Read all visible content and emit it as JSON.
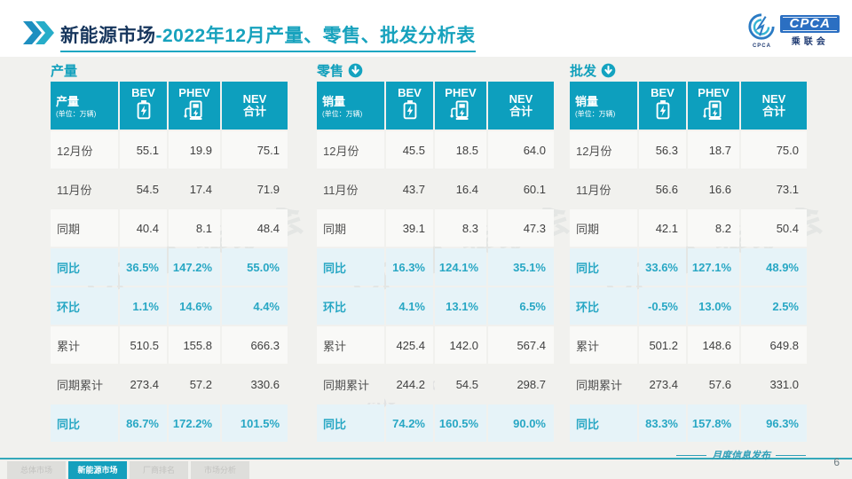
{
  "title": {
    "prefix": "新能源市场",
    "suffix": "-2022年12月产量、零售、批发分析表"
  },
  "logo": {
    "cpca": "CPCA",
    "sub": "乘联会",
    "cada": "CPCA"
  },
  "watermark": {
    "logo_text": "CPCA 乘联会",
    "url_text": "www.cpcaauto.com"
  },
  "chart_data": [
    {
      "type": "table",
      "section": "产量",
      "arrow": false,
      "header": {
        "label": "产量",
        "unit": "(单位：万辆)",
        "col_bev": "BEV",
        "col_phev": "PHEV",
        "col_nev_1": "NEV",
        "col_nev_2": "合计"
      },
      "rows": [
        {
          "label": "12月份",
          "values": [
            "55.1",
            "19.9",
            "75.1"
          ],
          "type": "a"
        },
        {
          "label": "11月份",
          "values": [
            "54.5",
            "17.4",
            "71.9"
          ],
          "type": "b"
        },
        {
          "label": "同期",
          "values": [
            "40.4",
            "8.1",
            "48.4"
          ],
          "type": "a"
        },
        {
          "label": "同比",
          "values": [
            "36.5%",
            "147.2%",
            "55.0%"
          ],
          "type": "h"
        },
        {
          "label": "环比",
          "values": [
            "1.1%",
            "14.6%",
            "4.4%"
          ],
          "type": "h"
        },
        {
          "label": "累计",
          "values": [
            "510.5",
            "155.8",
            "666.3"
          ],
          "type": "a"
        },
        {
          "label": "同期累计",
          "values": [
            "273.4",
            "57.2",
            "330.6"
          ],
          "type": "b"
        },
        {
          "label": "同比",
          "values": [
            "86.7%",
            "172.2%",
            "101.5%"
          ],
          "type": "h"
        }
      ]
    },
    {
      "type": "table",
      "section": "零售",
      "arrow": true,
      "header": {
        "label": "销量",
        "unit": "(单位：万辆)",
        "col_bev": "BEV",
        "col_phev": "PHEV",
        "col_nev_1": "NEV",
        "col_nev_2": "合计"
      },
      "rows": [
        {
          "label": "12月份",
          "values": [
            "45.5",
            "18.5",
            "64.0"
          ],
          "type": "a"
        },
        {
          "label": "11月份",
          "values": [
            "43.7",
            "16.4",
            "60.1"
          ],
          "type": "b"
        },
        {
          "label": "同期",
          "values": [
            "39.1",
            "8.3",
            "47.3"
          ],
          "type": "a"
        },
        {
          "label": "同比",
          "values": [
            "16.3%",
            "124.1%",
            "35.1%"
          ],
          "type": "h"
        },
        {
          "label": "环比",
          "values": [
            "4.1%",
            "13.1%",
            "6.5%"
          ],
          "type": "h"
        },
        {
          "label": "累计",
          "values": [
            "425.4",
            "142.0",
            "567.4"
          ],
          "type": "a"
        },
        {
          "label": "同期累计",
          "values": [
            "244.2",
            "54.5",
            "298.7"
          ],
          "type": "b"
        },
        {
          "label": "同比",
          "values": [
            "74.2%",
            "160.5%",
            "90.0%"
          ],
          "type": "h"
        }
      ]
    },
    {
      "type": "table",
      "section": "批发",
      "arrow": true,
      "header": {
        "label": "销量",
        "unit": "(单位：万辆)",
        "col_bev": "BEV",
        "col_phev": "PHEV",
        "col_nev_1": "NEV",
        "col_nev_2": "合计"
      },
      "rows": [
        {
          "label": "12月份",
          "values": [
            "56.3",
            "18.7",
            "75.0"
          ],
          "type": "a"
        },
        {
          "label": "11月份",
          "values": [
            "56.6",
            "16.6",
            "73.1"
          ],
          "type": "b"
        },
        {
          "label": "同期",
          "values": [
            "42.1",
            "8.2",
            "50.4"
          ],
          "type": "a"
        },
        {
          "label": "同比",
          "values": [
            "33.6%",
            "127.1%",
            "48.9%"
          ],
          "type": "h"
        },
        {
          "label": "环比",
          "values": [
            "-0.5%",
            "13.0%",
            "2.5%"
          ],
          "type": "h"
        },
        {
          "label": "累计",
          "values": [
            "501.2",
            "148.6",
            "649.8"
          ],
          "type": "a"
        },
        {
          "label": "同期累计",
          "values": [
            "273.4",
            "57.6",
            "331.0"
          ],
          "type": "b"
        },
        {
          "label": "同比",
          "values": [
            "83.3%",
            "157.8%",
            "96.3%"
          ],
          "type": "h"
        }
      ]
    }
  ],
  "footer": {
    "tabs": [
      {
        "label": "总体市场",
        "active": false
      },
      {
        "label": "新能源市场",
        "active": true
      },
      {
        "label": "厂商排名",
        "active": false
      },
      {
        "label": "市场分析",
        "active": false
      }
    ],
    "publication": "月度信息发布",
    "page": "6"
  },
  "colors": {
    "header_teal": "#0d9fbe",
    "highlight_bg": "#e6f3f8",
    "highlight_text": "#28a7c4",
    "title_navy": "#17365d",
    "title_teal": "#17a2bd",
    "logo_blue": "#2b6fc2"
  }
}
